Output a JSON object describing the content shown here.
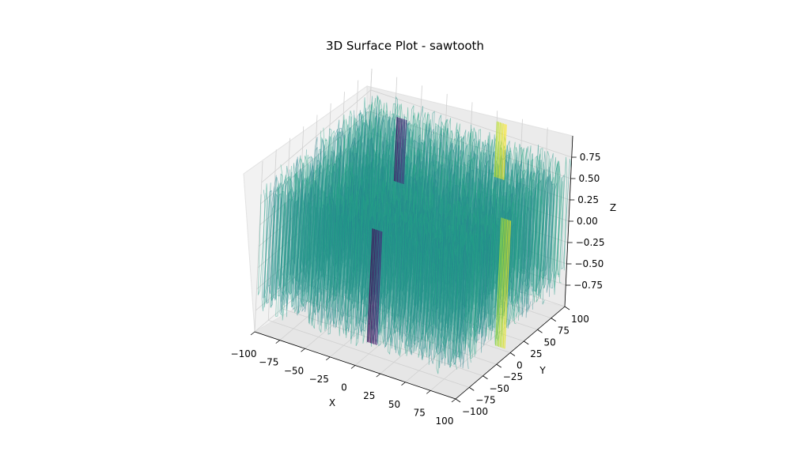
{
  "chart_data": {
    "type": "surface3d",
    "title": "3D Surface Plot - sawtooth",
    "xlabel": "X",
    "ylabel": "Y",
    "zlabel": "Z",
    "xlim": [
      -100,
      100
    ],
    "ylim": [
      -100,
      100
    ],
    "zlim": [
      -1,
      1
    ],
    "x_ticks": [
      -100,
      -75,
      -50,
      -25,
      0,
      25,
      50,
      75,
      100
    ],
    "y_ticks": [
      -100,
      -75,
      -50,
      -25,
      0,
      25,
      50,
      75,
      100
    ],
    "z_ticks": [
      -0.75,
      -0.5,
      -0.25,
      0.0,
      0.25,
      0.5,
      0.75
    ],
    "x_tick_labels": [
      "−100",
      "−75",
      "−50",
      "−25",
      "0",
      "25",
      "50",
      "75",
      "100"
    ],
    "y_tick_labels": [
      "−100",
      "−75",
      "−50",
      "−25",
      "0",
      "25",
      "50",
      "75",
      "100"
    ],
    "z_tick_labels": [
      "−0.75",
      "−0.50",
      "−0.25",
      "0.00",
      "0.25",
      "0.50",
      "0.75"
    ],
    "colormap": "viridis",
    "pane_color": "#f2f2f2",
    "grid": true
  }
}
